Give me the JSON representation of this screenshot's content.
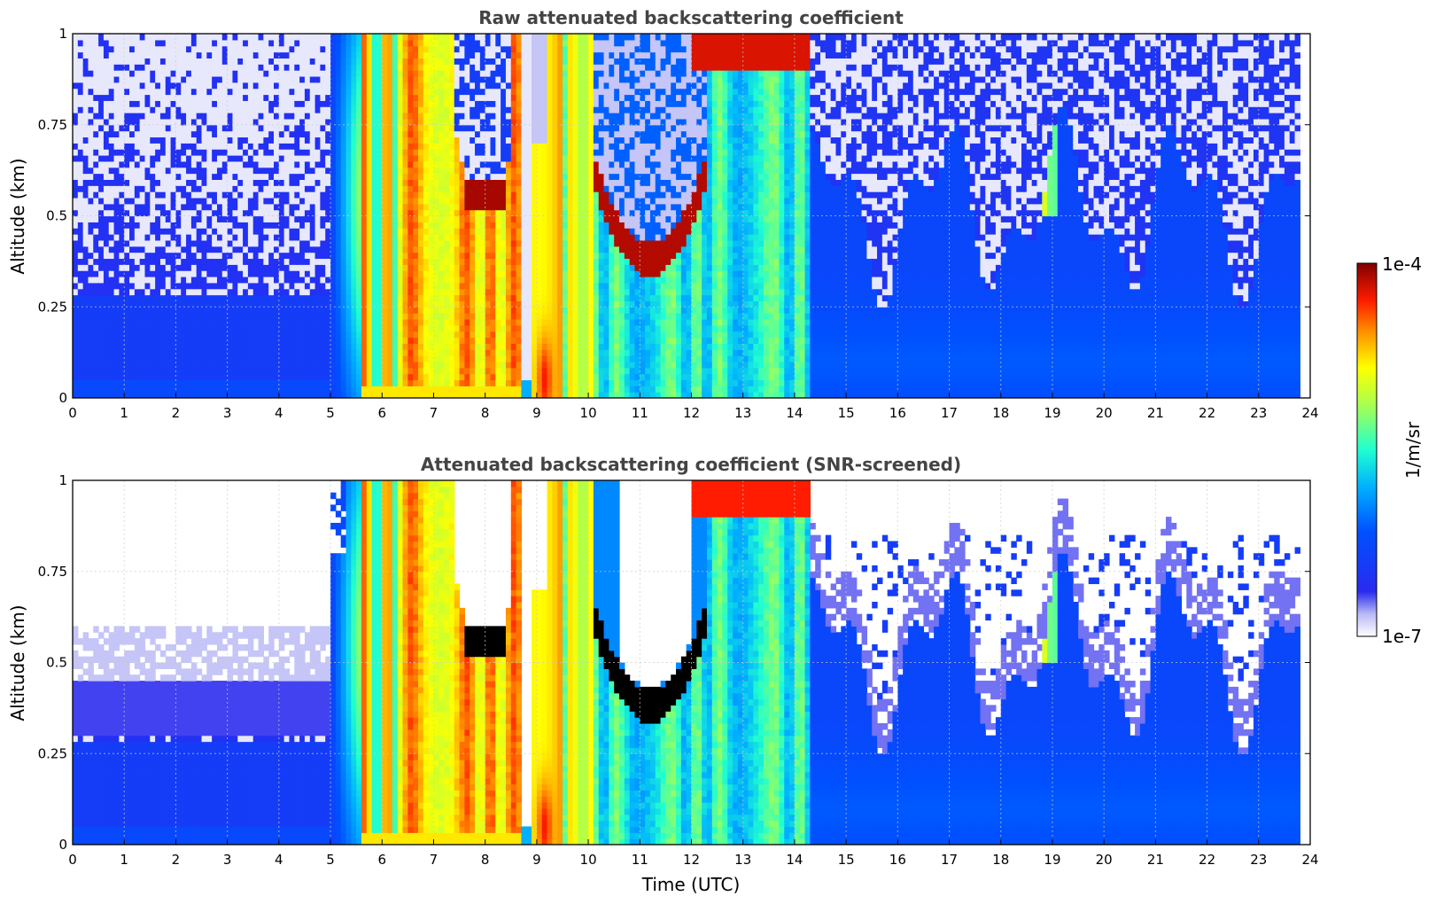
{
  "chart_data": [
    {
      "type": "heatmap",
      "title": "Raw attenuated backscattering coefficient",
      "xlabel": "",
      "ylabel": "Altitude (km)",
      "xlim": [
        0,
        24
      ],
      "ylim": [
        0,
        1
      ],
      "x_ticks": [
        "0",
        "1",
        "2",
        "3",
        "4",
        "5",
        "6",
        "7",
        "8",
        "9",
        "10",
        "11",
        "12",
        "13",
        "14",
        "15",
        "16",
        "17",
        "18",
        "19",
        "20",
        "21",
        "22",
        "23",
        "24"
      ],
      "y_ticks": [
        "0",
        "0.25",
        "0.5",
        "0.75",
        "1"
      ],
      "grid": true,
      "screened": false,
      "colorscale": "jet",
      "color_range_log10": [
        -7,
        -4
      ],
      "features": [
        {
          "name": "background",
          "x_range": [
            0,
            24
          ],
          "y_range": [
            0,
            1
          ],
          "level": 0.2
        },
        {
          "name": "low-cloud-band",
          "x_range": [
            5.6,
            8.7
          ],
          "y_range": [
            0,
            1
          ],
          "level": 0.82
        },
        {
          "name": "cloud-layer",
          "x_range": [
            7.5,
            8.4
          ],
          "y_range": [
            0.5,
            0.6
          ],
          "level": 0.97
        },
        {
          "name": "cloud-column",
          "x_range": [
            8.9,
            9.3
          ],
          "y_range": [
            0,
            0.2
          ],
          "level": 0.98
        },
        {
          "name": "cloud-arc",
          "x_range": [
            10.2,
            12.2
          ],
          "y_range": [
            0.35,
            0.5
          ],
          "level": 0.95
        },
        {
          "name": "mixed-region",
          "x_range": [
            9.5,
            14.3
          ],
          "y_range": [
            0,
            1
          ],
          "level": 0.55
        }
      ]
    },
    {
      "type": "heatmap",
      "title": "Attenuated backscattering coefficient (SNR-screened)",
      "xlabel": "Time (UTC)",
      "ylabel": "Altitude (km)",
      "xlim": [
        0,
        24
      ],
      "ylim": [
        0,
        1
      ],
      "x_ticks": [
        "0",
        "1",
        "2",
        "3",
        "4",
        "5",
        "6",
        "7",
        "8",
        "9",
        "10",
        "11",
        "12",
        "13",
        "14",
        "15",
        "16",
        "17",
        "18",
        "19",
        "20",
        "21",
        "22",
        "23",
        "24"
      ],
      "y_ticks": [
        "0",
        "0.25",
        "0.5",
        "0.75",
        "1"
      ],
      "grid": true,
      "screened": true,
      "colorscale": "jet",
      "color_range_log10": [
        -7,
        -4
      ],
      "features": [
        {
          "name": "background",
          "x_range": [
            0,
            24
          ],
          "y_range": [
            0,
            0.75
          ],
          "level": 0.2
        },
        {
          "name": "low-cloud-band",
          "x_range": [
            5.6,
            8.7
          ],
          "y_range": [
            0,
            1
          ],
          "level": 0.82
        },
        {
          "name": "clipped-layer",
          "x_range": [
            7.5,
            8.4
          ],
          "y_range": [
            0.5,
            0.6
          ],
          "level": 1.0
        },
        {
          "name": "clipped-arc",
          "x_range": [
            10.4,
            12.2
          ],
          "y_range": [
            0.33,
            0.45
          ],
          "level": 1.0
        },
        {
          "name": "masked-region",
          "x_range": [
            0,
            24
          ],
          "y_range": [
            0.6,
            1
          ],
          "level": null
        }
      ]
    }
  ],
  "colorbar": {
    "label": "1/m/sr",
    "max_label": "1e-4",
    "min_label": "1e-7"
  }
}
